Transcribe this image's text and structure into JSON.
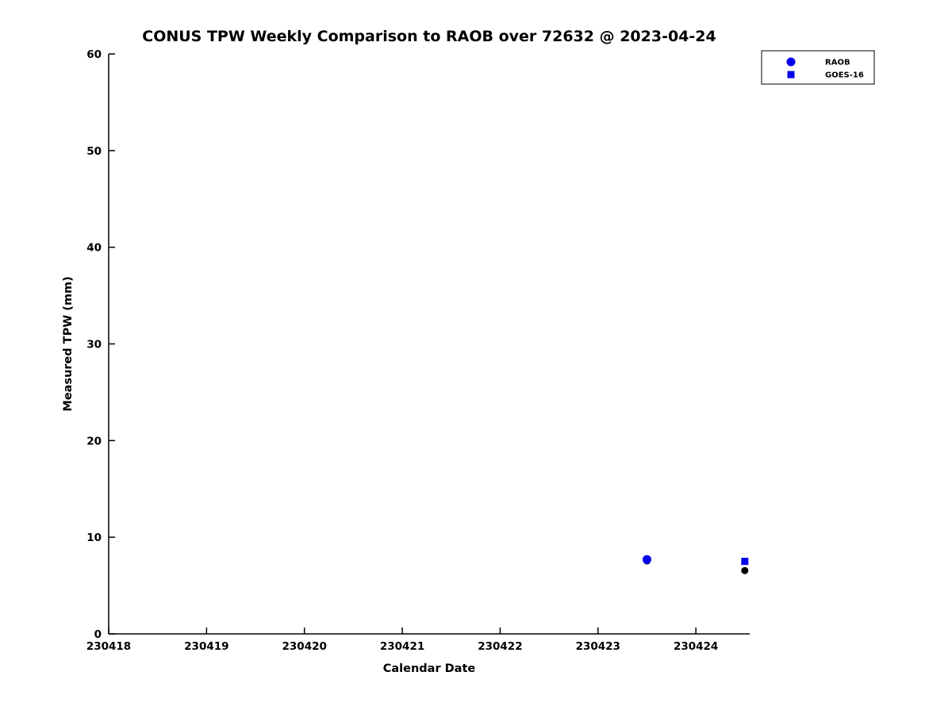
{
  "chart_data": {
    "type": "scatter",
    "title": "CONUS TPW Weekly Comparison to RAOB over 72632 @ 2023-04-24",
    "xlabel": "Calendar Date",
    "ylabel": "Measured TPW (mm)",
    "xlim": [
      230418,
      230424.55
    ],
    "ylim": [
      0,
      60
    ],
    "x_ticks": [
      230418,
      230419,
      230420,
      230421,
      230422,
      230423,
      230424
    ],
    "y_ticks": [
      0,
      10,
      20,
      30,
      40,
      50,
      60
    ],
    "grid": false,
    "legend_position": "top-right-outside-plot",
    "colors": {
      "series_blue": "#0000ee",
      "series_black": "#000000",
      "axis": "#000000",
      "background": "#ffffff"
    },
    "legend": [
      {
        "label": "RAOB",
        "marker": "circle",
        "color": "#0000ee"
      },
      {
        "label": "GOES-16",
        "marker": "square",
        "color": "#0000ee"
      }
    ],
    "series": [
      {
        "name": "unlabeled-black-points",
        "marker": "circle",
        "color": "#000000",
        "marker_size": 4.5,
        "points": [
          {
            "x": 230423.5,
            "y": 7.55
          },
          {
            "x": 230424.5,
            "y": 6.55
          }
        ]
      },
      {
        "name": "RAOB",
        "marker": "circle",
        "color": "#0000ee",
        "marker_size": 5.5,
        "points": [
          {
            "x": 230423.5,
            "y": 7.7
          }
        ]
      },
      {
        "name": "GOES-16",
        "marker": "square",
        "color": "#0000ee",
        "marker_size": 4.5,
        "points": [
          {
            "x": 230424.5,
            "y": 7.5
          }
        ]
      }
    ]
  }
}
